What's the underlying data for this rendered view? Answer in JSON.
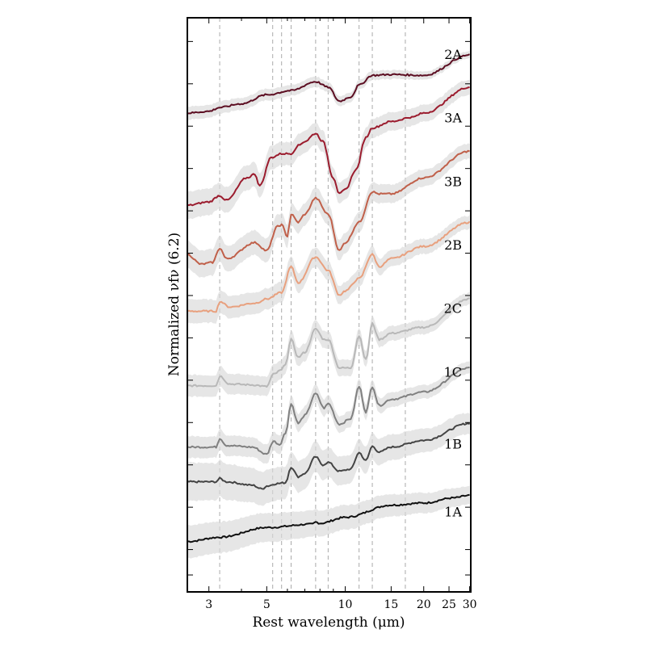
{
  "chart_data": {
    "type": "line",
    "title": "",
    "xlabel": "Rest wavelength (μm)",
    "ylabel": "Normalized νfν (6.2)",
    "xscale": "log",
    "xlim": [
      2.48,
      30.3
    ],
    "ylim": [
      -1.0,
      12.56
    ],
    "xticks": [
      3,
      5,
      10,
      15,
      20,
      25,
      30
    ],
    "xtick_labels": [
      "3",
      "5",
      "10",
      "15",
      "20",
      "25",
      "30"
    ],
    "xminor_ticks": [
      4,
      6,
      7,
      8,
      9
    ],
    "yticks": [
      -0.6,
      0.0,
      1.0,
      2.0,
      3.0,
      4.0,
      5.0,
      6.0,
      7.0,
      8.0,
      9.0,
      10.0,
      11.0,
      12.0
    ],
    "feature_lines": [
      3.3,
      5.27,
      5.7,
      6.2,
      7.7,
      8.6,
      11.3,
      12.7,
      17.0
    ],
    "grid": false,
    "series": [
      {
        "name": "1A",
        "color": "#111111",
        "band": 0.3,
        "label_y": 0.9,
        "x": [
          2.48,
          3.3,
          5.0,
          7.5,
          7.7,
          8.0,
          10.0,
          15.0,
          20.0,
          26.0,
          30.0
        ],
        "y": [
          0.19,
          0.29,
          0.52,
          0.6,
          0.65,
          0.62,
          0.76,
          1.05,
          1.1,
          1.22,
          1.28
        ]
      },
      {
        "name": "1B",
        "color": "#444444",
        "band": 0.35,
        "label_y": 2.5,
        "x": [
          2.48,
          3.2,
          3.3,
          3.5,
          4.4,
          4.8,
          5.0,
          5.5,
          5.9,
          6.2,
          6.6,
          7.0,
          7.7,
          8.2,
          8.6,
          9.5,
          10.5,
          11.3,
          12.0,
          12.7,
          13.5,
          15.0,
          20.0,
          30.0
        ],
        "y": [
          1.6,
          1.6,
          1.68,
          1.6,
          1.52,
          1.43,
          1.5,
          1.56,
          1.58,
          1.95,
          1.72,
          1.8,
          2.19,
          2.0,
          2.06,
          1.85,
          1.9,
          2.29,
          2.1,
          2.44,
          2.3,
          2.42,
          2.58,
          2.98
        ]
      },
      {
        "name": "1C",
        "color": "#808080",
        "band": 0.2,
        "label_y": 4.2,
        "x": [
          2.48,
          3.2,
          3.3,
          3.5,
          4.4,
          5.0,
          5.3,
          5.6,
          5.9,
          6.2,
          6.6,
          7.0,
          7.7,
          8.3,
          8.6,
          9.5,
          10.5,
          11.3,
          12.0,
          12.7,
          13.5,
          15.0,
          20.0,
          30.0
        ],
        "y": [
          2.42,
          2.42,
          2.63,
          2.46,
          2.42,
          2.25,
          2.56,
          2.48,
          2.75,
          3.44,
          2.98,
          3.17,
          3.68,
          3.34,
          3.45,
          2.96,
          3.09,
          3.85,
          3.25,
          3.85,
          3.4,
          3.55,
          3.72,
          4.29
        ]
      },
      {
        "name": "2C",
        "color": "#b8b8b8",
        "band": 0.2,
        "label_y": 5.7,
        "x": [
          2.48,
          3.2,
          3.3,
          3.6,
          4.4,
          5.0,
          5.3,
          5.7,
          5.9,
          6.2,
          6.6,
          7.0,
          7.7,
          8.3,
          8.6,
          9.5,
          10.5,
          11.3,
          12.0,
          12.7,
          13.5,
          15.0,
          20.0,
          30.0
        ],
        "y": [
          3.87,
          3.87,
          4.1,
          3.91,
          3.89,
          3.85,
          4.14,
          4.24,
          4.39,
          4.96,
          4.54,
          4.66,
          5.21,
          4.96,
          4.96,
          4.29,
          4.29,
          5.05,
          4.48,
          5.34,
          4.96,
          5.11,
          5.25,
          5.92
        ]
      },
      {
        "name": "2B",
        "color": "#e8a07e",
        "band": 0.22,
        "label_y": 7.2,
        "x": [
          2.48,
          3.2,
          3.3,
          3.6,
          4.5,
          5.0,
          5.7,
          6.2,
          6.6,
          7.7,
          8.6,
          9.5,
          10.0,
          11.3,
          12.7,
          13.5,
          15.0,
          20.0,
          30.0
        ],
        "y": [
          5.63,
          5.63,
          5.86,
          5.73,
          5.82,
          5.92,
          6.07,
          6.68,
          6.3,
          6.91,
          6.59,
          6.01,
          6.11,
          6.4,
          6.97,
          6.68,
          6.87,
          7.16,
          7.73
        ]
      },
      {
        "name": "3B",
        "color": "#c0604a",
        "band": 0.25,
        "label_y": 8.7,
        "x": [
          2.48,
          2.8,
          3.1,
          3.3,
          3.5,
          4.5,
          5.0,
          5.5,
          5.7,
          6.0,
          6.2,
          6.6,
          7.0,
          7.7,
          8.6,
          9.5,
          10.0,
          11.3,
          12.7,
          13.5,
          15.0,
          20.0,
          30.0
        ],
        "y": [
          6.97,
          6.74,
          6.78,
          7.12,
          6.87,
          7.25,
          7.06,
          7.63,
          7.67,
          7.4,
          7.92,
          7.73,
          7.92,
          8.3,
          7.92,
          7.06,
          7.25,
          7.73,
          8.45,
          8.4,
          8.4,
          8.78,
          9.41
        ]
      },
      {
        "name": "3A",
        "color": "#9b1c2e",
        "band": 0.25,
        "label_y": 10.2,
        "x": [
          2.48,
          3.0,
          3.3,
          3.5,
          4.2,
          4.5,
          4.7,
          5.2,
          5.7,
          6.2,
          6.6,
          7.0,
          7.7,
          8.2,
          9.0,
          9.5,
          10.0,
          11.0,
          12.0,
          12.7,
          15.0,
          18.0,
          20.0,
          30.0
        ],
        "y": [
          8.13,
          8.21,
          8.36,
          8.25,
          8.78,
          8.87,
          8.59,
          9.26,
          9.35,
          9.35,
          9.54,
          9.64,
          9.83,
          9.64,
          8.78,
          8.4,
          8.5,
          8.97,
          9.73,
          9.96,
          10.11,
          10.21,
          10.31,
          10.92
        ]
      },
      {
        "name": "2A",
        "color": "#5c0e22",
        "band": 0.12,
        "label_y": 11.7,
        "x": [
          2.48,
          3.0,
          3.3,
          4.0,
          5.0,
          6.2,
          7.7,
          8.6,
          9.5,
          10.5,
          11.3,
          12.7,
          15.0,
          20.0,
          30.0
        ],
        "y": [
          10.31,
          10.35,
          10.44,
          10.53,
          10.74,
          10.84,
          11.05,
          10.92,
          10.59,
          10.69,
          10.97,
          11.2,
          11.22,
          11.2,
          11.68
        ]
      }
    ]
  }
}
